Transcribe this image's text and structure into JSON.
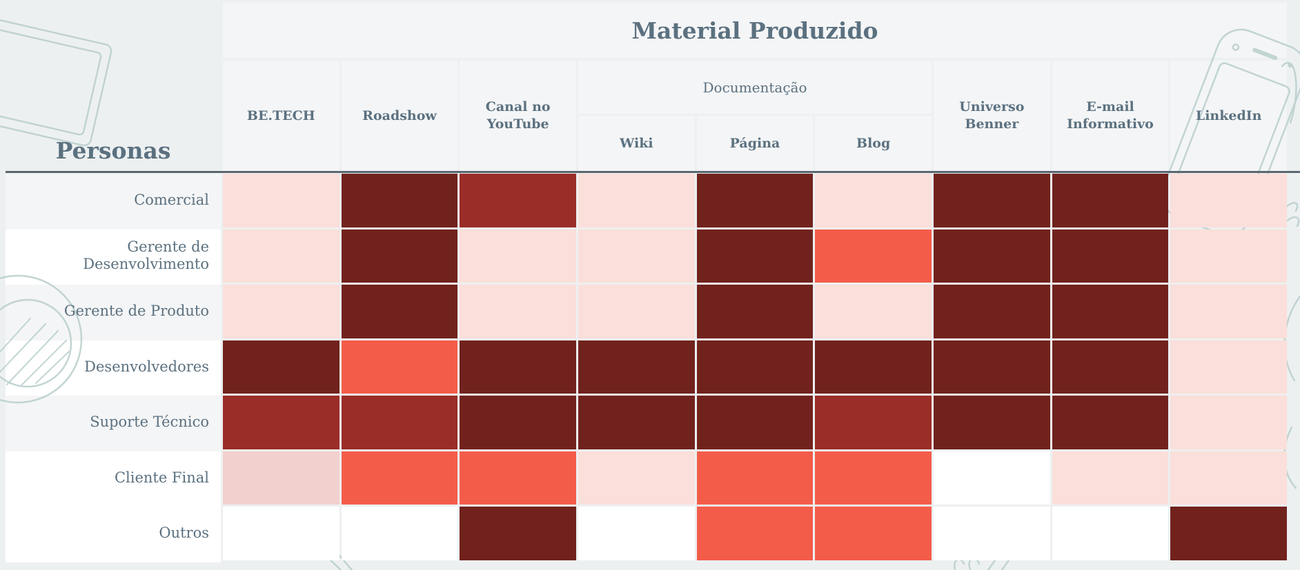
{
  "page": {
    "background": "#edf0f1",
    "panel_bg": "#f4f5f6",
    "stripe_gray": "#f4f5f6",
    "stripe_white": "#ffffff",
    "text_color": "#5b7180",
    "rule_color": "#5b6771",
    "sketch_color": "#b7cecb",
    "gutter_color": "#ffffff"
  },
  "header": {
    "title": "Material Produzido",
    "personas_label": "Personas"
  },
  "chart_data": {
    "type": "heatmap",
    "title": "Material Produzido",
    "row_axis_label": "Personas",
    "columns": [
      "BE.TECH",
      "Roadshow",
      "Canal no YouTube",
      "Wiki",
      "Página",
      "Blog",
      "Universo Benner",
      "E-mail Informativo",
      "LinkedIn"
    ],
    "column_groups": [
      {
        "label": "Documentação",
        "start": 3,
        "end": 5
      }
    ],
    "rows": [
      "Comercial",
      "Gerente de Desenvolvimento",
      "Gerente de Produto",
      "Desenvolvedores",
      "Suporte Técnico",
      "Cliente Final",
      "Outros"
    ],
    "row_stripes": [
      "gray",
      "white",
      "gray",
      "white",
      "gray",
      "white",
      "white"
    ],
    "legend_position": "none",
    "levels": {
      "none": "#ffffff",
      "very-low": "#f2d0cd",
      "low": "#fbdfda",
      "medium": "#f45c4a",
      "high": "#9a2d27",
      "very-high": "#71221d"
    },
    "values": [
      [
        "low",
        "very-high",
        "high",
        "low",
        "very-high",
        "low",
        "very-high",
        "very-high",
        "low"
      ],
      [
        "low",
        "very-high",
        "low",
        "low",
        "very-high",
        "medium",
        "very-high",
        "very-high",
        "low"
      ],
      [
        "low",
        "very-high",
        "low",
        "low",
        "very-high",
        "low",
        "very-high",
        "very-high",
        "low"
      ],
      [
        "very-high",
        "medium",
        "very-high",
        "very-high",
        "very-high",
        "very-high",
        "very-high",
        "very-high",
        "low"
      ],
      [
        "high",
        "high",
        "very-high",
        "very-high",
        "very-high",
        "high",
        "very-high",
        "very-high",
        "low"
      ],
      [
        "very-low",
        "medium",
        "medium",
        "low",
        "medium",
        "medium",
        "none",
        "low",
        "low"
      ],
      [
        "none",
        "none",
        "very-high",
        "none",
        "medium",
        "medium",
        "none",
        "none",
        "very-high"
      ]
    ]
  }
}
